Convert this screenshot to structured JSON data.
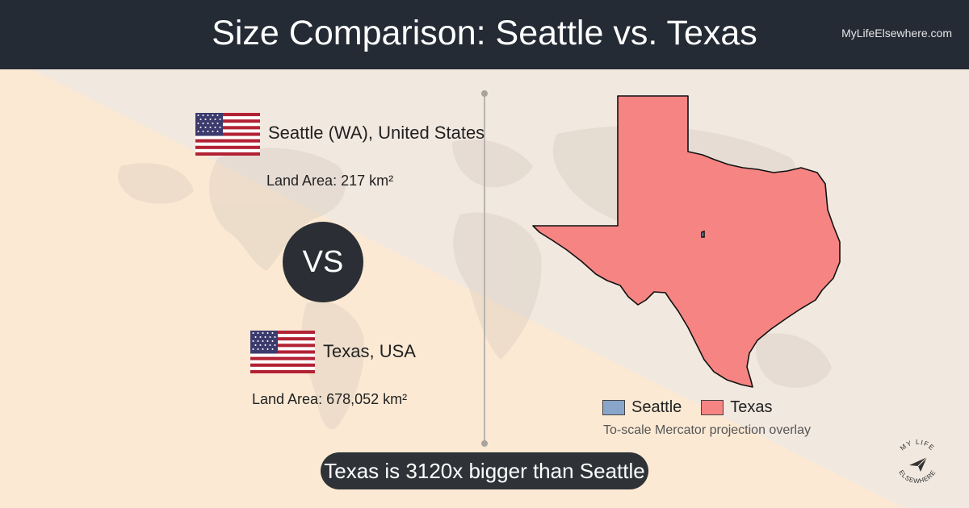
{
  "header": {
    "title": "Size Comparison: Seattle vs. Texas",
    "brand": "MyLifeElsewhere.com"
  },
  "left": {
    "place1": {
      "name": "Seattle (WA), United States",
      "area": "Land Area: 217 km²",
      "flag": "us-flag-icon"
    },
    "vs": "VS",
    "place2": {
      "name": "Texas, USA",
      "area": "Land Area: 678,052 km²",
      "flag": "us-flag-icon"
    }
  },
  "legend": {
    "items": [
      {
        "label": "Seattle",
        "color": "#89a6ca"
      },
      {
        "label": "Texas",
        "color": "#f58483"
      }
    ],
    "note": "To-scale Mercator projection overlay"
  },
  "summary": "Texas is 3120x bigger than Seattle",
  "logo": {
    "top_text": "MY LIFE",
    "bottom_text": "ELSEWHERE",
    "icon": "paper-plane-icon"
  },
  "colors": {
    "header_bg": "#242b35",
    "texas_fill": "#f58483",
    "seattle_fill": "#89a6ca",
    "pill_bg": "#2f3338"
  }
}
